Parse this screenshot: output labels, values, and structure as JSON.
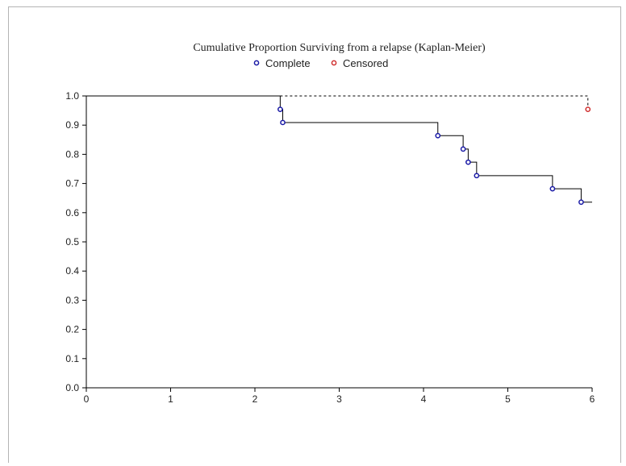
{
  "chart_data": {
    "type": "line",
    "title": "Cumulative Proportion Surviving from a relapse (Kaplan-Meier)",
    "xlabel": "",
    "ylabel": "",
    "xlim": [
      0,
      6
    ],
    "ylim": [
      0.0,
      1.0
    ],
    "x_ticks": [
      "0",
      "1",
      "2",
      "3",
      "4",
      "5",
      "6"
    ],
    "y_ticks": [
      "0.0",
      "0.1",
      "0.2",
      "0.3",
      "0.4",
      "0.5",
      "0.6",
      "0.7",
      "0.8",
      "0.9",
      "1.0"
    ],
    "grid": false,
    "legend": {
      "position": "top-center",
      "entries": [
        "Complete",
        "Censored"
      ]
    },
    "series": [
      {
        "name": "Complete",
        "marker": "circle",
        "color": "#1a1aa6",
        "x": [
          2.3,
          2.33,
          4.17,
          4.47,
          4.53,
          4.63,
          5.53,
          5.87
        ],
        "y": [
          0.954,
          0.909,
          0.864,
          0.818,
          0.773,
          0.727,
          0.682,
          0.636
        ]
      },
      {
        "name": "Censored",
        "marker": "circle",
        "color": "#d03030",
        "x": [
          5.95
        ],
        "y": [
          0.954
        ]
      }
    ],
    "survival_curve": {
      "line_color": "#000000",
      "steps": [
        {
          "x": 0,
          "y": 1.0
        },
        {
          "x": 2.3,
          "y": 0.954
        },
        {
          "x": 2.33,
          "y": 0.909
        },
        {
          "x": 4.17,
          "y": 0.864
        },
        {
          "x": 4.47,
          "y": 0.818
        },
        {
          "x": 4.53,
          "y": 0.773
        },
        {
          "x": 4.63,
          "y": 0.727
        },
        {
          "x": 5.53,
          "y": 0.682
        },
        {
          "x": 5.87,
          "y": 0.636
        }
      ],
      "end_x": 6
    },
    "censored_reference": {
      "style": "dashed",
      "from_x": 2.3,
      "to_x": 5.95,
      "y": 1.0,
      "drop_to_y": 0.954
    }
  }
}
